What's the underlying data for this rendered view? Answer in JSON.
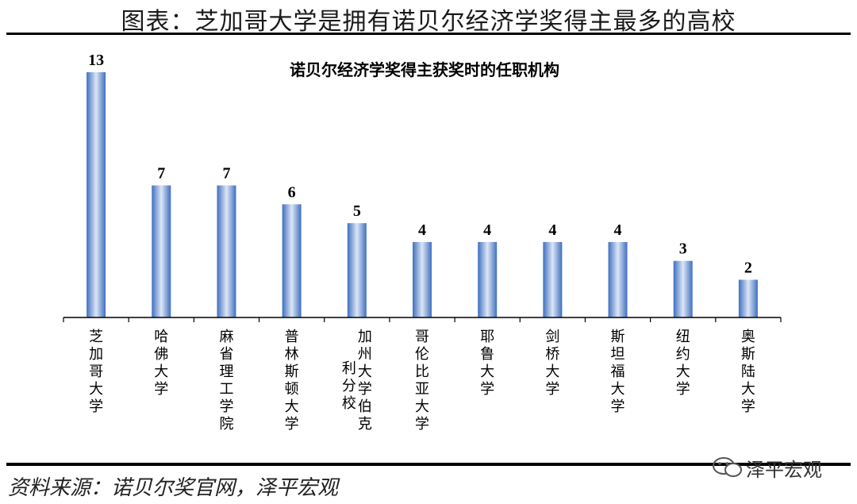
{
  "page_title": "图表：芝加哥大学是拥有诺贝尔经济学奖得主最多的高校",
  "source": "资料来源：诺贝尔奖官网，泽平宏观",
  "logo_text": "泽平宏观",
  "colors": {
    "bar_light": "#dce6f5",
    "bar_mid": "#7da1d8",
    "bar_dark": "#3f6fc0",
    "axis": "#000000"
  },
  "chart_data": {
    "type": "bar",
    "title": "诺贝尔经济学奖得主获奖时的任职机构",
    "categories": [
      "芝加哥大学",
      "哈佛大学",
      "麻省理工学院",
      "普林斯顿大学",
      "加州大学伯克利分校",
      "哥伦比亚大学",
      "耶鲁大学",
      "剑桥大学",
      "斯坦福大学",
      "纽约大学",
      "奥斯陆大学"
    ],
    "category_lines": [
      [
        "芝加哥大学"
      ],
      [
        "哈佛大学"
      ],
      [
        "麻省理工学院"
      ],
      [
        "普林斯顿大学"
      ],
      [
        "加州大学伯克",
        "利分校"
      ],
      [
        "哥伦比亚大学"
      ],
      [
        "耶鲁大学"
      ],
      [
        "剑桥大学"
      ],
      [
        "斯坦福大学"
      ],
      [
        "纽约大学"
      ],
      [
        "奥斯陆大学"
      ]
    ],
    "values": [
      13,
      7,
      7,
      6,
      5,
      4,
      4,
      4,
      4,
      3,
      2
    ],
    "data_labels": [
      "13",
      "7",
      "7",
      "6",
      "5",
      "4",
      "4",
      "4",
      "4",
      "3",
      "2"
    ],
    "ylim": [
      0,
      13
    ],
    "grid": false,
    "legend": "none"
  }
}
